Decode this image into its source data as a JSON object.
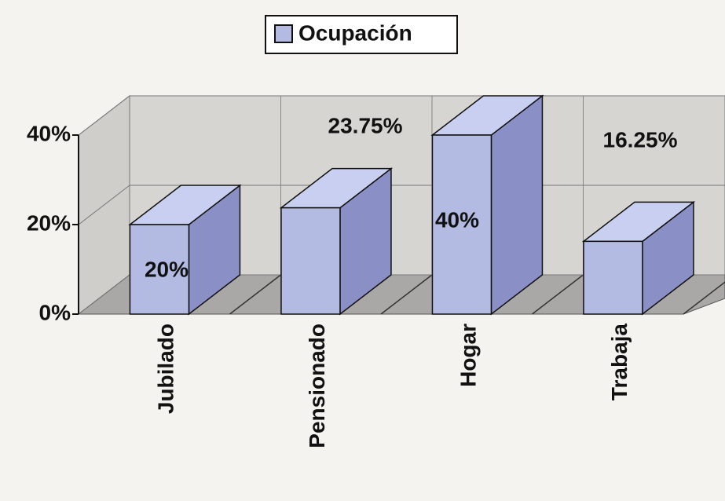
{
  "chart_data": {
    "type": "bar3d",
    "legend": "Ocupación",
    "categories": [
      "Jubilado",
      "Pensionado",
      "Hogar",
      "Trabaja"
    ],
    "values": [
      20,
      23.75,
      40,
      16.25
    ],
    "value_labels": [
      "20%",
      "23.75%",
      "40%",
      "16.25%"
    ],
    "color": "#b3bbe3",
    "ylim": [
      0,
      40
    ],
    "yticks": [
      {
        "value": 0,
        "label": "0%"
      },
      {
        "value": 20,
        "label": "20%"
      },
      {
        "value": 40,
        "label": "40%"
      }
    ],
    "grid": true
  }
}
